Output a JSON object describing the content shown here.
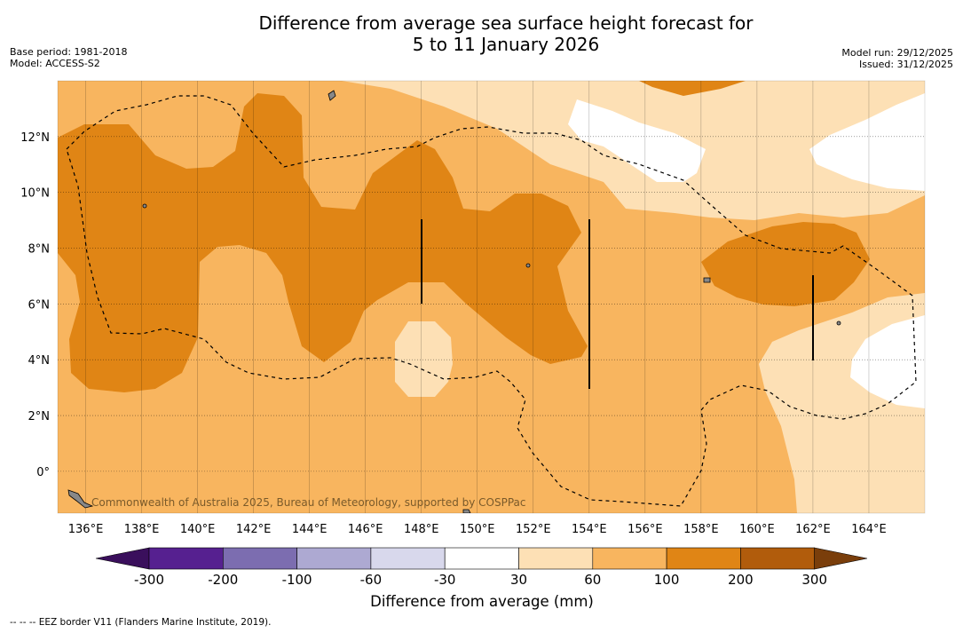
{
  "title_line1": "Difference from average sea surface height forecast for",
  "title_line2": "5 to 11 January 2026",
  "meta_left": {
    "base_period": "Base period: 1981-2018",
    "model": "Model: ACCESS-S2"
  },
  "meta_right": {
    "model_run": "Model run: 29/12/2025",
    "issued": "Issued: 31/12/2025"
  },
  "map": {
    "lon_range": [
      135,
      166
    ],
    "lat_range": [
      -1.5,
      14
    ],
    "lon_ticks": [
      "136°E",
      "138°E",
      "140°E",
      "142°E",
      "144°E",
      "146°E",
      "148°E",
      "150°E",
      "152°E",
      "154°E",
      "156°E",
      "158°E",
      "160°E",
      "162°E",
      "164°E"
    ],
    "lat_ticks": [
      "12°N",
      "10°N",
      "8°N",
      "6°N",
      "4°N",
      "2°N",
      "0°"
    ],
    "watermark": "Commonwealth of Australia 2025, Bureau of Meteorology, supported by COSPPac"
  },
  "colorbar": {
    "title": "Difference from average (mm)",
    "labels": [
      "-300",
      "-200",
      "-100",
      "-60",
      "-30",
      "30",
      "60",
      "100",
      "200",
      "300"
    ],
    "colors": [
      "#3a0f5c",
      "#562090",
      "#7c6db0",
      "#ada9d2",
      "#d8d8ec",
      "#ffffff",
      "#fde0b5",
      "#f8b55f",
      "#e08515",
      "#b15c0c",
      "#7a3e0b"
    ]
  },
  "footnote": "--  --  -- EEZ border V11 (Flanders Marine Institute, 2019)."
}
